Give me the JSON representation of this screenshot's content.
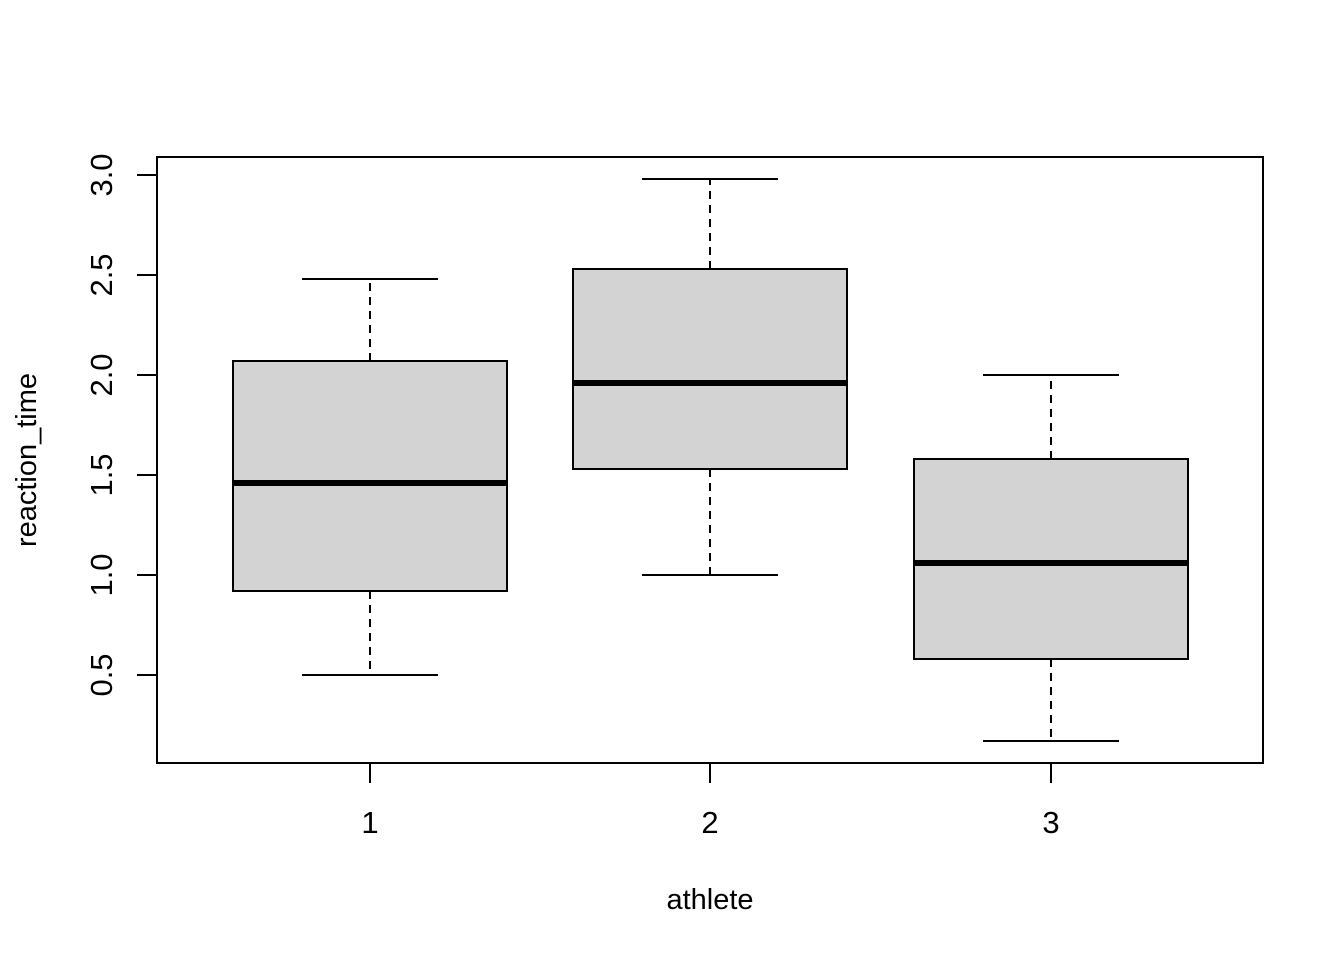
{
  "chart_data": {
    "type": "box",
    "title": "",
    "xlabel": "athlete",
    "ylabel": "reaction_time",
    "categories": [
      "1",
      "2",
      "3"
    ],
    "boxes": [
      {
        "category": "1",
        "whisker_low": 0.5,
        "q1": 0.92,
        "median": 1.46,
        "q3": 2.07,
        "whisker_high": 2.48
      },
      {
        "category": "2",
        "whisker_low": 1.0,
        "q1": 1.53,
        "median": 1.96,
        "q3": 2.53,
        "whisker_high": 2.98
      },
      {
        "category": "3",
        "whisker_low": 0.17,
        "q1": 0.58,
        "median": 1.06,
        "q3": 1.58,
        "whisker_high": 2.0
      }
    ],
    "ylim": [
      0.06,
      3.09
    ],
    "yticks": [
      "0.5",
      "1.0",
      "1.5",
      "2.0",
      "2.5",
      "3.0"
    ],
    "grid": false,
    "box_fill": "#d3d3d3",
    "line_color": "#000000"
  }
}
